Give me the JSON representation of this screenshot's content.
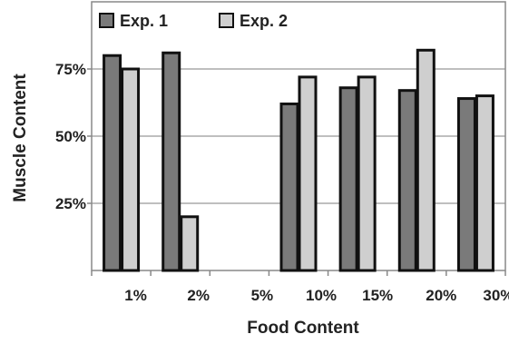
{
  "chart_data": {
    "type": "bar",
    "title": "",
    "xlabel": "Food Content",
    "ylabel": "Muscle Content",
    "categories": [
      "1%",
      "2%",
      "5%",
      "10%",
      "15%",
      "20%",
      "30%"
    ],
    "series": [
      {
        "name": "Exp. 1",
        "color": "#7a7a7a",
        "values": [
          80,
          81,
          null,
          62,
          68,
          67,
          64
        ]
      },
      {
        "name": "Exp. 2",
        "color": "#cfcfcf",
        "values": [
          75,
          20,
          null,
          72,
          72,
          82,
          65
        ]
      }
    ],
    "ylim": [
      0,
      100
    ],
    "yticks": [
      25,
      50,
      75
    ],
    "ytick_labels": [
      "25%",
      "50%",
      "75%"
    ],
    "grid": true,
    "legend": "top-left"
  }
}
